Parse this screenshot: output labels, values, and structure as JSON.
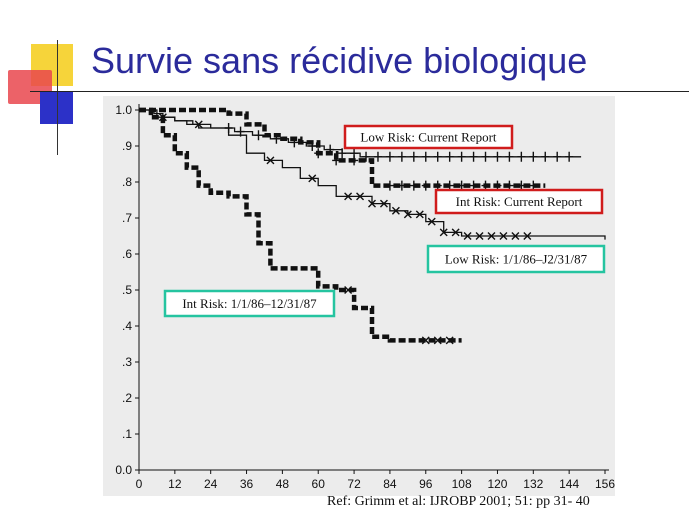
{
  "slide": {
    "title": "Survie sans récidive biologique",
    "citation": "Ref: Grimm et al: IJROBP 2001; 51: pp 31- 40"
  },
  "colors": {
    "title": "#2b2b9b",
    "current_report_box": "#d01c1c",
    "historical_box": "#25c4a0",
    "curve": "#111111",
    "plot_background": "#ececec"
  },
  "chart_data": {
    "type": "line",
    "title": "",
    "xlabel": "",
    "ylabel": "",
    "xlim": [
      0,
      156
    ],
    "ylim": [
      0,
      1.0
    ],
    "x_ticks": [
      0,
      12,
      24,
      36,
      48,
      60,
      72,
      84,
      96,
      108,
      120,
      132,
      144,
      156
    ],
    "y_ticks": [
      {
        "value": 1.0,
        "label": "1.0"
      },
      {
        "value": 0.9,
        "label": ".9"
      },
      {
        "value": 0.8,
        "label": ".8"
      },
      {
        "value": 0.7,
        "label": ".7"
      },
      {
        "value": 0.6,
        "label": ".6"
      },
      {
        "value": 0.5,
        "label": ".5"
      },
      {
        "value": 0.4,
        "label": ".4"
      },
      {
        "value": 0.3,
        "label": ".3"
      },
      {
        "value": 0.2,
        "label": ".2"
      },
      {
        "value": 0.1,
        "label": ".1"
      },
      {
        "value": 0.0,
        "label": "0.0"
      }
    ],
    "grid": false,
    "series": [
      {
        "name": "Low Risk: Current Report",
        "box": "current",
        "style": "solid",
        "censor": "plus",
        "x": [
          0,
          5,
          8,
          12,
          16,
          20,
          26,
          32,
          38,
          44,
          50,
          56,
          62,
          68,
          74,
          82,
          90,
          100,
          110,
          120,
          135,
          148
        ],
        "y": [
          1.0,
          0.99,
          0.98,
          0.97,
          0.96,
          0.95,
          0.95,
          0.94,
          0.93,
          0.92,
          0.91,
          0.9,
          0.89,
          0.88,
          0.87,
          0.87,
          0.87,
          0.87,
          0.87,
          0.87,
          0.87,
          0.87
        ],
        "censored_x": [
          30,
          34,
          40,
          46,
          52,
          58,
          64,
          68,
          72,
          76,
          80,
          84,
          88,
          92,
          96,
          100,
          104,
          108,
          112,
          116,
          120,
          124,
          128,
          132,
          136,
          140,
          144
        ]
      },
      {
        "name": "Int Risk: Current Report",
        "box": "current",
        "style": "dashed-heavy",
        "censor": "plus",
        "x": [
          0,
          10,
          18,
          24,
          30,
          36,
          42,
          48,
          54,
          60,
          66,
          72,
          78,
          84,
          96,
          108,
          120,
          132,
          136
        ],
        "y": [
          1.0,
          1.0,
          1.0,
          1.0,
          0.99,
          0.96,
          0.93,
          0.92,
          0.91,
          0.88,
          0.86,
          0.86,
          0.79,
          0.79,
          0.79,
          0.79,
          0.79,
          0.79,
          0.79
        ],
        "censored_x": [
          60,
          66,
          72,
          84,
          88,
          92,
          96,
          100,
          104,
          108,
          112,
          116,
          120,
          124,
          128,
          132
        ]
      },
      {
        "name": "Low Risk: 1/1/86–12/31/87",
        "box": "historical",
        "style": "solid",
        "censor": "cross",
        "x": [
          0,
          6,
          12,
          18,
          24,
          30,
          36,
          42,
          48,
          54,
          60,
          66,
          72,
          78,
          84,
          90,
          96,
          102,
          108,
          114,
          120,
          132,
          156
        ],
        "y": [
          1.0,
          0.98,
          0.97,
          0.96,
          0.95,
          0.93,
          0.88,
          0.86,
          0.84,
          0.81,
          0.79,
          0.76,
          0.76,
          0.74,
          0.72,
          0.71,
          0.69,
          0.66,
          0.65,
          0.65,
          0.65,
          0.65,
          0.64
        ],
        "censored_x": [
          8,
          20,
          44,
          58,
          70,
          74,
          78,
          82,
          86,
          90,
          94,
          98,
          102,
          106,
          110,
          114,
          118,
          122,
          126,
          130
        ]
      },
      {
        "name": "Int Risk: 1/1/86–12/31/87",
        "box": "historical",
        "style": "dashed-heavy",
        "censor": "cross",
        "x": [
          0,
          4,
          8,
          12,
          16,
          20,
          24,
          30,
          36,
          40,
          44,
          48,
          54,
          60,
          66,
          72,
          78,
          84,
          96,
          108
        ],
        "y": [
          1.0,
          0.98,
          0.93,
          0.88,
          0.84,
          0.79,
          0.77,
          0.76,
          0.71,
          0.63,
          0.56,
          0.56,
          0.56,
          0.51,
          0.5,
          0.45,
          0.37,
          0.36,
          0.36,
          0.36
        ],
        "censored_x": [
          70,
          96,
          100,
          104
        ]
      }
    ],
    "annotations": [
      {
        "text": "Low Risk: Current Report",
        "box": "current"
      },
      {
        "text": "Int Risk: Current Report",
        "box": "current"
      },
      {
        "text": "Low Risk: 1/1/86–J2/31/87",
        "box": "historical"
      },
      {
        "text": "Int Risk: 1/1/86‒12/31/87",
        "box": "historical"
      }
    ]
  }
}
